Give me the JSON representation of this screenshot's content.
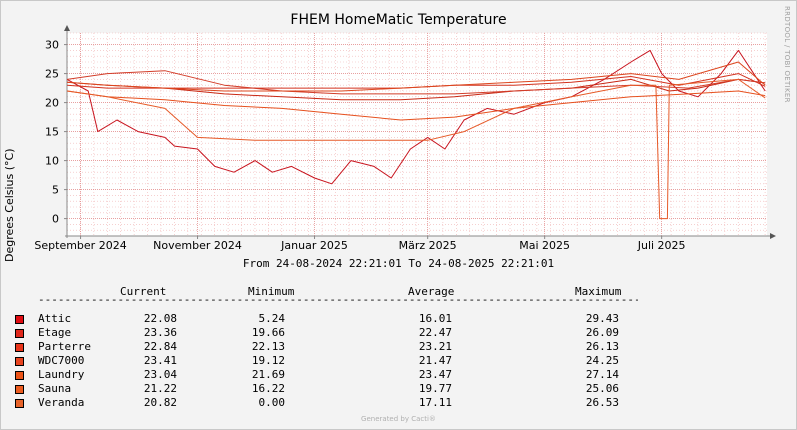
{
  "chart_data": {
    "type": "line",
    "title": "FHEM HomeMatic Temperature",
    "ylabel": "Degrees Celsius (°C)",
    "xlabel": "",
    "ylim": [
      -3,
      32
    ],
    "yticks": [
      0,
      5,
      10,
      15,
      20,
      25,
      30
    ],
    "x_start": "2024-08-24 22:21:01",
    "x_end": "2025-08-24 22:21:01",
    "x_ticks": [
      {
        "label": "September 2024",
        "date": "2024-09-01"
      },
      {
        "label": "November 2024",
        "date": "2024-11-01"
      },
      {
        "label": "Januar 2025",
        "date": "2025-01-01"
      },
      {
        "label": "März 2025",
        "date": "2025-03-01"
      },
      {
        "label": "Mai 2025",
        "date": "2025-05-01"
      },
      {
        "label": "Juli 2025",
        "date": "2025-07-01"
      }
    ],
    "grid": true,
    "series": [
      {
        "name": "Attic",
        "color": "#c8141e",
        "points": [
          [
            "2024-08-25",
            24
          ],
          [
            "2024-09-05",
            22
          ],
          [
            "2024-09-10",
            15
          ],
          [
            "2024-09-20",
            17
          ],
          [
            "2024-10-01",
            15
          ],
          [
            "2024-10-15",
            14
          ],
          [
            "2024-10-20",
            12.5
          ],
          [
            "2024-11-01",
            12
          ],
          [
            "2024-11-10",
            9
          ],
          [
            "2024-11-20",
            8
          ],
          [
            "2024-12-01",
            10
          ],
          [
            "2024-12-10",
            8
          ],
          [
            "2024-12-20",
            9
          ],
          [
            "2025-01-01",
            7
          ],
          [
            "2025-01-10",
            6
          ],
          [
            "2025-01-20",
            10
          ],
          [
            "2025-02-01",
            9
          ],
          [
            "2025-02-10",
            7
          ],
          [
            "2025-02-20",
            12
          ],
          [
            "2025-03-01",
            14
          ],
          [
            "2025-03-10",
            12
          ],
          [
            "2025-03-20",
            17
          ],
          [
            "2025-04-01",
            19
          ],
          [
            "2025-04-15",
            18
          ],
          [
            "2025-05-01",
            20
          ],
          [
            "2025-05-15",
            21
          ],
          [
            "2025-06-01",
            24
          ],
          [
            "2025-06-15",
            27
          ],
          [
            "2025-06-25",
            29
          ],
          [
            "2025-07-01",
            25
          ],
          [
            "2025-07-10",
            22
          ],
          [
            "2025-07-20",
            21
          ],
          [
            "2025-08-01",
            25
          ],
          [
            "2025-08-10",
            29
          ],
          [
            "2025-08-24",
            22
          ]
        ]
      },
      {
        "name": "Etage",
        "color": "#c82814",
        "points": [
          [
            "2024-08-25",
            23.5
          ],
          [
            "2024-09-15",
            23
          ],
          [
            "2024-10-15",
            22.5
          ],
          [
            "2024-11-15",
            21.5
          ],
          [
            "2024-12-15",
            21
          ],
          [
            "2025-01-15",
            20.5
          ],
          [
            "2025-02-15",
            20.5
          ],
          [
            "2025-03-15",
            21
          ],
          [
            "2025-04-15",
            22
          ],
          [
            "2025-05-15",
            22.5
          ],
          [
            "2025-06-15",
            24
          ],
          [
            "2025-07-05",
            22
          ],
          [
            "2025-07-20",
            22.5
          ],
          [
            "2025-08-10",
            24
          ],
          [
            "2025-08-24",
            23.4
          ]
        ]
      },
      {
        "name": "Parterre",
        "color": "#d2321e",
        "points": [
          [
            "2024-08-25",
            23
          ],
          [
            "2024-09-15",
            22.5
          ],
          [
            "2024-10-15",
            22.5
          ],
          [
            "2024-11-15",
            22.5
          ],
          [
            "2024-12-15",
            22.5
          ],
          [
            "2025-01-15",
            22.5
          ],
          [
            "2025-02-15",
            22.5
          ],
          [
            "2025-03-15",
            23
          ],
          [
            "2025-04-15",
            23
          ],
          [
            "2025-05-15",
            23.5
          ],
          [
            "2025-06-15",
            24.5
          ],
          [
            "2025-07-10",
            23
          ],
          [
            "2025-08-10",
            25
          ],
          [
            "2025-08-24",
            22.8
          ]
        ]
      },
      {
        "name": "WDC7000",
        "color": "#d23c28",
        "points": [
          [
            "2024-08-25",
            24
          ],
          [
            "2024-09-15",
            25
          ],
          [
            "2024-10-15",
            25.5
          ],
          [
            "2024-11-15",
            23
          ],
          [
            "2024-12-15",
            22
          ],
          [
            "2025-01-15",
            21.5
          ],
          [
            "2025-02-15",
            21.5
          ],
          [
            "2025-03-15",
            21.5
          ],
          [
            "2025-04-15",
            22
          ],
          [
            "2025-05-15",
            22.5
          ],
          [
            "2025-06-15",
            23
          ],
          [
            "2025-07-15",
            22.5
          ],
          [
            "2025-08-10",
            24
          ],
          [
            "2025-08-24",
            23.4
          ]
        ]
      },
      {
        "name": "Laundry",
        "color": "#dc461e",
        "points": [
          [
            "2024-08-25",
            23.5
          ],
          [
            "2024-09-15",
            23
          ],
          [
            "2024-10-15",
            22.5
          ],
          [
            "2024-11-15",
            22
          ],
          [
            "2024-12-15",
            22
          ],
          [
            "2025-01-15",
            22
          ],
          [
            "2025-02-15",
            22.5
          ],
          [
            "2025-03-15",
            23
          ],
          [
            "2025-04-15",
            23.5
          ],
          [
            "2025-05-15",
            24
          ],
          [
            "2025-06-15",
            25
          ],
          [
            "2025-07-10",
            24
          ],
          [
            "2025-08-10",
            27
          ],
          [
            "2025-08-24",
            23
          ]
        ]
      },
      {
        "name": "Sauna",
        "color": "#e6501e",
        "points": [
          [
            "2024-08-25",
            22
          ],
          [
            "2024-09-15",
            21
          ],
          [
            "2024-10-15",
            20.5
          ],
          [
            "2024-11-15",
            19.5
          ],
          [
            "2024-12-15",
            19
          ],
          [
            "2025-01-15",
            18
          ],
          [
            "2025-02-15",
            17
          ],
          [
            "2025-03-15",
            17.5
          ],
          [
            "2025-04-15",
            19
          ],
          [
            "2025-05-15",
            20
          ],
          [
            "2025-06-15",
            21
          ],
          [
            "2025-07-15",
            21.5
          ],
          [
            "2025-08-10",
            22
          ],
          [
            "2025-08-24",
            21.2
          ]
        ]
      },
      {
        "name": "Veranda",
        "color": "#e65a28",
        "points": [
          [
            "2024-08-25",
            22
          ],
          [
            "2024-09-15",
            21
          ],
          [
            "2024-10-15",
            19
          ],
          [
            "2024-11-01",
            14
          ],
          [
            "2024-12-01",
            13.5
          ],
          [
            "2025-01-01",
            13.5
          ],
          [
            "2025-02-01",
            13.5
          ],
          [
            "2025-03-01",
            13.5
          ],
          [
            "2025-03-20",
            15
          ],
          [
            "2025-04-15",
            19
          ],
          [
            "2025-05-15",
            21
          ],
          [
            "2025-06-15",
            23
          ],
          [
            "2025-06-28",
            23
          ],
          [
            "2025-06-30",
            0
          ],
          [
            "2025-07-04",
            0
          ],
          [
            "2025-07-05",
            23
          ],
          [
            "2025-08-10",
            24
          ],
          [
            "2025-08-24",
            20.8
          ]
        ]
      }
    ]
  },
  "labels": {
    "watermark": "RRDTOOL / TOBI OETIKER",
    "range_text": "From 24-08-2024 22:21:01 To 24-08-2025 22:21:01",
    "col_current": "Current",
    "col_minimum": "Minimum",
    "col_average": "Average",
    "col_maximum": "Maximum",
    "footer": "Generated by Cacti®"
  },
  "legend": [
    {
      "name": "Attic",
      "color": "#e00c12",
      "current": "22.08",
      "minimum": "5.24",
      "average": "16.01",
      "maximum": "29.43"
    },
    {
      "name": "Etage",
      "color": "#e0281c",
      "current": "23.36",
      "minimum": "19.66",
      "average": "22.47",
      "maximum": "26.09"
    },
    {
      "name": "Parterre",
      "color": "#e8341a",
      "current": "22.84",
      "minimum": "22.13",
      "average": "23.21",
      "maximum": "26.13"
    },
    {
      "name": "WDC7000",
      "color": "#e84420",
      "current": "23.41",
      "minimum": "19.12",
      "average": "21.47",
      "maximum": "24.25"
    },
    {
      "name": "Laundry",
      "color": "#ec5418",
      "current": "23.04",
      "minimum": "21.69",
      "average": "23.47",
      "maximum": "27.14"
    },
    {
      "name": "Sauna",
      "color": "#ec5c20",
      "current": "21.22",
      "minimum": "16.22",
      "average": "19.77",
      "maximum": "25.06"
    },
    {
      "name": "Veranda",
      "color": "#e8642a",
      "current": "20.82",
      "minimum": "0.00",
      "average": "17.11",
      "maximum": "26.53"
    }
  ]
}
